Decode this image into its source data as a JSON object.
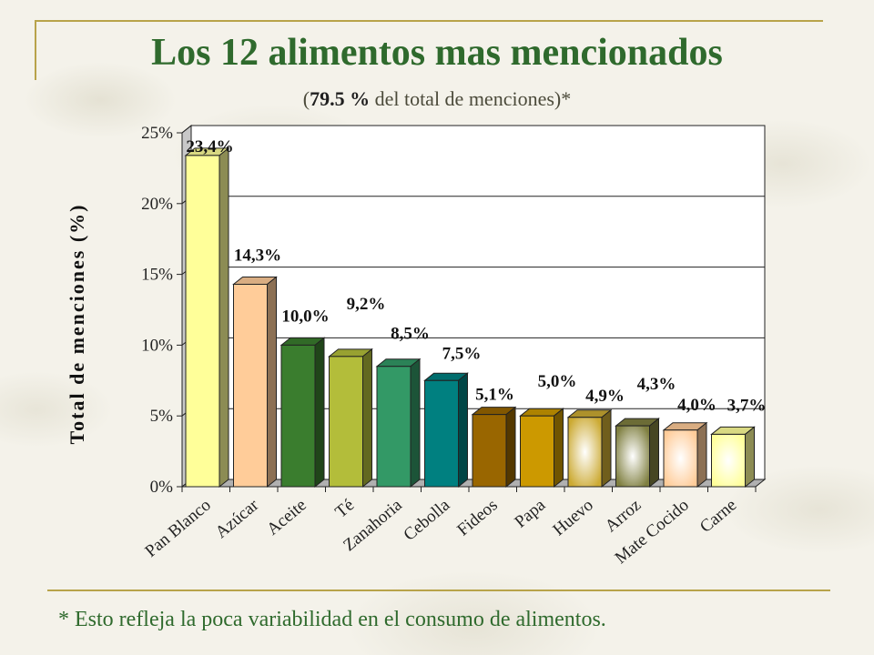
{
  "slide": {
    "title": "Los 12 alimentos mas mencionados",
    "subtitle_open": "(",
    "subtitle_bold": "79.5 %",
    "subtitle_rest": " del total de menciones)*",
    "footnote": "* Esto refleja la poca variabilidad en el consumo de alimentos."
  },
  "chart_data": {
    "type": "bar",
    "title": "",
    "xlabel": "",
    "ylabel": "Total de menciones (%)",
    "ylim": [
      0,
      25
    ],
    "yticks": [
      "0%",
      "5%",
      "10%",
      "15%",
      "20%",
      "25%"
    ],
    "grid": true,
    "categories": [
      "Pan Blanco",
      "Azúcar",
      "Aceite",
      "Té",
      "Zanahoria",
      "Cebolla",
      "Fideos",
      "Papa",
      "Huevo",
      "Arroz",
      "Mate Cocido",
      "Carne"
    ],
    "values": [
      23.4,
      14.3,
      10.0,
      9.2,
      8.5,
      7.5,
      5.1,
      5.0,
      4.9,
      4.3,
      4.0,
      3.7
    ],
    "data_labels": [
      "23,4%",
      "14,3%",
      "10,0%",
      "9,2%",
      "8,5%",
      "7,5%",
      "5,1%",
      "5,0%",
      "4,9%",
      "4,3%",
      "4,0%",
      "3,7%"
    ],
    "colors": [
      "#ffff99",
      "#ffcc99",
      "#3a7d2e",
      "#b3bd3a",
      "#339966",
      "#008080",
      "#996600",
      "#cc9900",
      "#ccaa33",
      "#7f7f40",
      "#ffcc99",
      "#ffff99"
    ],
    "gradient": [
      false,
      false,
      false,
      false,
      false,
      false,
      false,
      false,
      true,
      true,
      true,
      true
    ]
  }
}
